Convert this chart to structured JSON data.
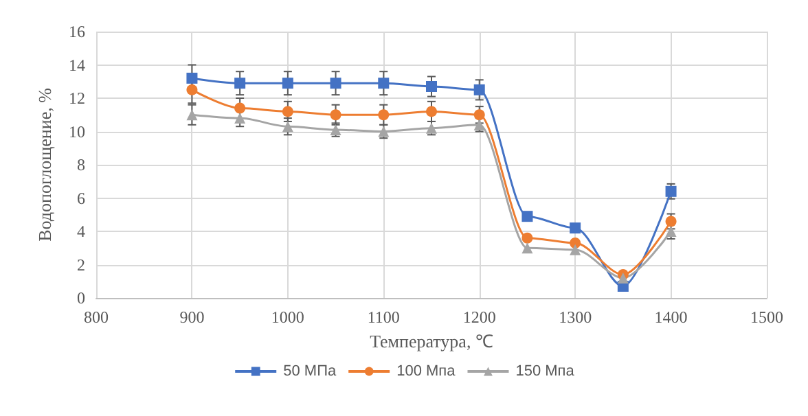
{
  "chart_data": {
    "type": "line",
    "xlabel": "Температура, ℃",
    "ylabel": "Водопоглощение, %",
    "x": [
      900,
      950,
      1000,
      1050,
      1100,
      1150,
      1200,
      1250,
      1300,
      1350,
      1400
    ],
    "xlim": [
      800,
      1500
    ],
    "xticks": [
      800,
      900,
      1000,
      1100,
      1200,
      1300,
      1400,
      1500
    ],
    "ylim": [
      0,
      16
    ],
    "yticks": [
      0,
      2,
      4,
      6,
      8,
      10,
      12,
      14,
      16
    ],
    "grid": true,
    "legend": "bottom",
    "series": [
      {
        "name": "50 МПа",
        "color": "#4472c4",
        "marker": "square",
        "values": [
          13.2,
          12.9,
          12.9,
          12.9,
          12.9,
          12.7,
          12.5,
          4.9,
          4.2,
          0.7,
          6.4
        ],
        "errors": [
          0.8,
          0.7,
          0.7,
          0.7,
          0.7,
          0.6,
          0.6,
          null,
          null,
          null,
          0.45
        ]
      },
      {
        "name": "100 Мпа",
        "color": "#ed7d31",
        "marker": "circle",
        "values": [
          12.5,
          11.4,
          11.2,
          11.0,
          11.0,
          11.2,
          11.0,
          3.6,
          3.3,
          1.4,
          4.6
        ],
        "errors": [
          0.8,
          0.6,
          0.6,
          0.6,
          0.6,
          0.6,
          0.5,
          null,
          null,
          null,
          0.45
        ]
      },
      {
        "name": "150 Мпа",
        "color": "#a5a5a5",
        "marker": "triangle",
        "values": [
          11.0,
          10.8,
          10.3,
          10.1,
          10.0,
          10.2,
          10.4,
          3.0,
          2.9,
          1.2,
          4.0
        ],
        "errors": [
          0.6,
          0.5,
          0.5,
          0.4,
          0.4,
          0.4,
          0.4,
          null,
          null,
          null,
          0.45
        ]
      }
    ]
  }
}
